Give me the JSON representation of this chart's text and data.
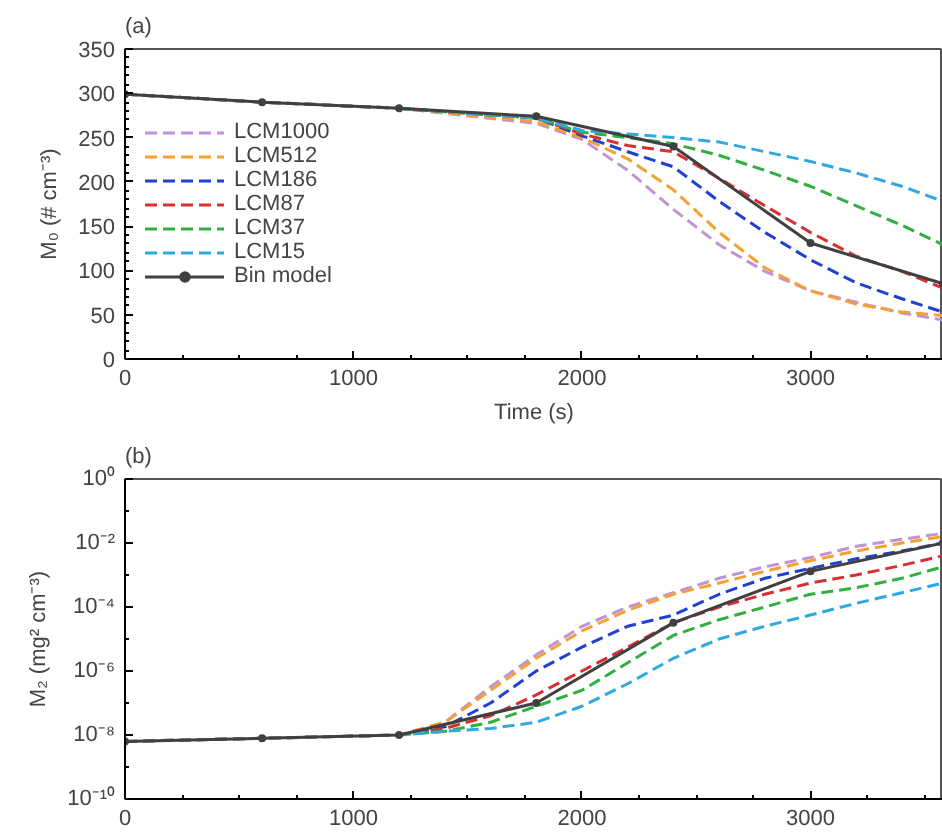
{
  "chart_data": [
    {
      "type": "line",
      "title": "(a)",
      "xlabel": "Time (s)",
      "ylabel": "M₀ (# cm⁻³)",
      "xlim": [
        0,
        3580
      ],
      "xticks": [
        0,
        1000,
        2000,
        3000
      ],
      "ylim": [
        0,
        350
      ],
      "yticks": [
        0,
        50,
        100,
        150,
        200,
        250,
        300,
        350
      ],
      "grid": false,
      "legend": "left",
      "line_style": "dashed",
      "x": [
        0,
        600,
        1200,
        1800,
        2000,
        2200,
        2400,
        2600,
        2800,
        3000,
        3200,
        3400,
        3580
      ],
      "series": [
        {
          "name": "LCM1000",
          "color": "#bf94d6",
          "values": [
            299,
            290,
            283,
            266,
            248,
            213,
            169,
            129,
            99,
            77,
            64,
            52,
            44
          ]
        },
        {
          "name": "LCM512",
          "color": "#f5a030",
          "values": [
            299,
            290,
            283,
            268,
            250,
            226,
            191,
            143,
            103,
            77,
            62,
            53,
            49
          ]
        },
        {
          "name": "LCM186",
          "color": "#2040d0",
          "values": [
            null,
            null,
            283,
            272,
            252,
            234,
            217,
            178,
            143,
            112,
            86,
            68,
            53
          ]
        },
        {
          "name": "LCM87",
          "color": "#d83030",
          "values": [
            299,
            290,
            283,
            272,
            254,
            241,
            234,
            204,
            173,
            143,
            116,
            99,
            80
          ]
        },
        {
          "name": "LCM37",
          "color": "#30b040",
          "values": [
            null,
            null,
            283,
            272,
            256,
            250,
            243,
            230,
            213,
            195,
            173,
            151,
            129
          ]
        },
        {
          "name": "LCM15",
          "color": "#30a8e0",
          "values": [
            299,
            290,
            283,
            272,
            258,
            254,
            250,
            245,
            234,
            223,
            210,
            195,
            178
          ]
        },
        {
          "name": "Bin model",
          "color": "#404040",
          "line_style": "solid",
          "marker": "circle",
          "x": [
            0,
            600,
            1200,
            1800,
            2400,
            3000,
            3580
          ],
          "values": [
            299,
            290,
            283,
            274,
            240,
            131,
            85
          ]
        }
      ]
    },
    {
      "type": "line",
      "title": "(b)",
      "ylabel": "M₂ (mg² cm⁻³)",
      "xlim": [
        0,
        3580
      ],
      "xticks": [
        0,
        1000,
        2000,
        3000
      ],
      "log": true,
      "ylim": [
        1e-10,
        1
      ],
      "yticks": [
        {
          "value": 1,
          "label": "10⁰"
        },
        {
          "value": 0.01,
          "label": "10⁻²"
        },
        {
          "value": 0.0001,
          "label": "10⁻⁴"
        },
        {
          "value": 1e-06,
          "label": "10⁻⁶"
        },
        {
          "value": 1e-08,
          "label": "10⁻⁸"
        },
        {
          "value": 1e-10,
          "label": "10⁻¹⁰"
        }
      ],
      "grid": false,
      "legend": false,
      "line_style": "dashed",
      "x": [
        0,
        600,
        1200,
        1400,
        1600,
        1800,
        2000,
        2200,
        2400,
        2600,
        2800,
        3000,
        3200,
        3400,
        3580
      ],
      "series": [
        {
          "color": "#bf94d6",
          "values": [
            6.3e-09,
            7.9e-09,
            1e-08,
            2.5e-08,
            3.2e-07,
            3.2e-06,
            2.5e-05,
            0.0001,
            0.00028,
            0.00079,
            0.0018,
            0.0035,
            0.0079,
            0.013,
            0.02
          ]
        },
        {
          "color": "#f5a030",
          "values": [
            6.3e-09,
            7.9e-09,
            1e-08,
            2.5e-08,
            2.5e-07,
            2.5e-06,
            1.8e-05,
            7.9e-05,
            0.00025,
            0.00056,
            0.0013,
            0.0028,
            0.0056,
            0.01,
            0.016
          ]
        },
        {
          "color": "#2040d0",
          "values": [
            null,
            null,
            1e-08,
            1.8e-08,
            1e-07,
            1e-06,
            5.6e-06,
            2.5e-05,
            5.6e-05,
            0.00025,
            0.00079,
            0.0016,
            0.0032,
            0.0056,
            0.01
          ]
        },
        {
          "color": "#d83030",
          "values": [
            6.3e-09,
            7.9e-09,
            1e-08,
            1.6e-08,
            4e-08,
            1.8e-07,
            1e-06,
            5.6e-06,
            3.2e-05,
            0.0001,
            0.00025,
            0.00056,
            0.001,
            0.002,
            0.004
          ]
        },
        {
          "color": "#30b040",
          "values": [
            null,
            null,
            1e-08,
            1.3e-08,
            2.5e-08,
            7.9e-08,
            2.5e-07,
            1.8e-06,
            1.3e-05,
            4e-05,
            0.0001,
            0.00025,
            0.0004,
            0.00079,
            0.0018
          ]
        },
        {
          "color": "#30a8e0",
          "values": [
            6.3e-09,
            7.9e-09,
            1e-08,
            1.3e-08,
            1.6e-08,
            2.5e-08,
            7.9e-08,
            4e-07,
            2.5e-06,
            1e-05,
            2.5e-05,
            5.6e-05,
            0.00013,
            0.00028,
            0.00056
          ]
        },
        {
          "color": "#404040",
          "line_style": "solid",
          "marker": "circle",
          "x": [
            0,
            600,
            1200,
            1800,
            2400,
            3000,
            3580
          ],
          "values": [
            6.3e-09,
            7.9e-09,
            1e-08,
            1e-07,
            3.2e-05,
            0.0013,
            0.01
          ]
        }
      ]
    }
  ]
}
